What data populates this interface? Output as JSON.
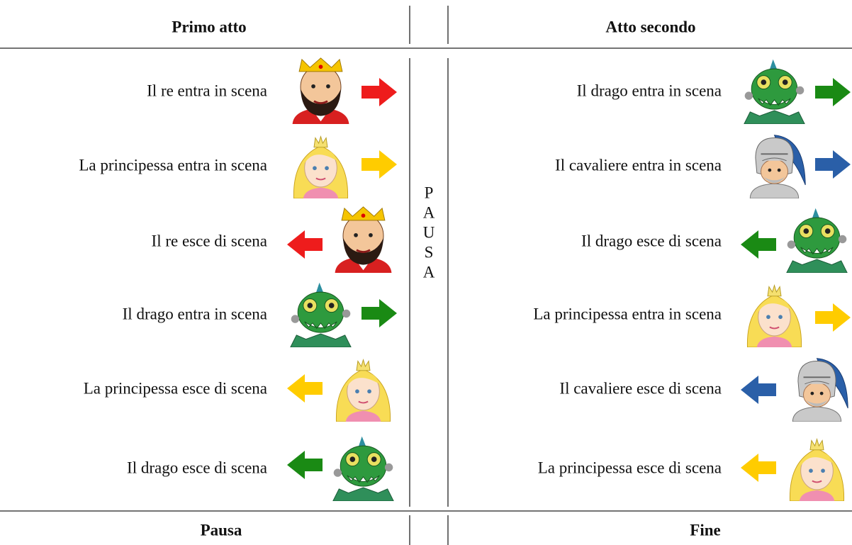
{
  "header": {
    "left": "Primo atto",
    "right": "Atto secondo"
  },
  "left_rows": [
    "Il re entra in scena",
    "La principessa entra in scena",
    "Il re esce di scena",
    "Il drago entra in scena",
    "La principessa esce di scena",
    "Il drago esce di scena"
  ],
  "pause_letters": [
    "P",
    "A",
    "U",
    "S",
    "A"
  ],
  "right_rows": [
    "Il drago entra in scena",
    "Il cavaliere entra in scena",
    "Il drago esce di scena",
    "La principessa entra in scena",
    "Il cavaliere esce di scena",
    "La principessa esce di scena"
  ],
  "footer": {
    "left": "Pausa",
    "right": "Fine"
  }
}
